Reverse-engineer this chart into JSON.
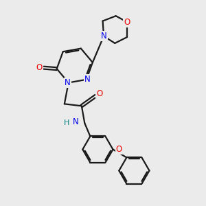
{
  "background_color": "#ebebeb",
  "bond_color": "#1a1a1a",
  "nitrogen_color": "#0000ee",
  "oxygen_color": "#ee0000",
  "nh_color": "#008080",
  "line_width": 1.6,
  "figsize": [
    3.0,
    3.0
  ],
  "dpi": 100,
  "xlim": [
    0,
    10
  ],
  "ylim": [
    0,
    10
  ]
}
